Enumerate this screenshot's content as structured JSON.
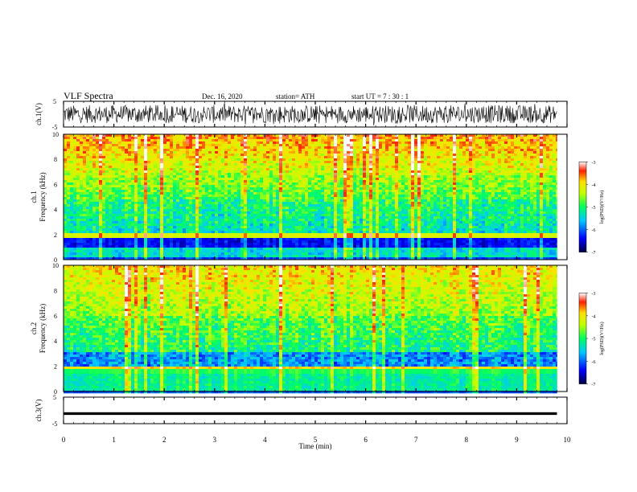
{
  "header": {
    "title": "VLF Spectra",
    "date": "Dec. 16, 2020",
    "station": "station= ATH",
    "start": "start  UT =   7 : 30 : 1"
  },
  "chart_data": [
    {
      "type": "line",
      "panel": "ch1-waveform",
      "ylabel": "ch.1(V)",
      "ylim": [
        -5,
        5
      ],
      "yticks": [
        "5",
        "-5"
      ],
      "x_range_min": [
        0,
        9.8
      ],
      "note_values": "noisy signal, approx -4 to 4 V"
    },
    {
      "type": "heatmap",
      "panel": "ch1-spectrogram",
      "ylabel_channel": "ch.1",
      "ylabel": "Frequency  (kHz)",
      "ylim": [
        0,
        10
      ],
      "yticks": [
        "0",
        "2",
        "4",
        "6",
        "8",
        "10"
      ],
      "x_range_min": [
        0,
        9.8
      ],
      "colorbar": {
        "label": "log(PSD)(V²/Hz)",
        "ticks": [
          "-3",
          "-4",
          "-5",
          "-6",
          "-7"
        ],
        "range": [
          -7,
          -3
        ]
      }
    },
    {
      "type": "heatmap",
      "panel": "ch2-spectrogram",
      "ylabel_channel": "ch.2",
      "ylabel": "Frequency  (kHz)",
      "ylim": [
        0,
        10
      ],
      "yticks": [
        "0",
        "2",
        "4",
        "6",
        "8",
        "10"
      ],
      "x_range_min": [
        0,
        9.8
      ],
      "colorbar": {
        "label": "log(PSD)(V²/Hz)",
        "ticks": [
          "-3",
          "-4",
          "-5",
          "-6",
          "-7"
        ],
        "range": [
          -7,
          -3
        ]
      }
    },
    {
      "type": "line",
      "panel": "ch3-waveform",
      "ylabel": "ch.3(V)",
      "ylim": [
        -5,
        5
      ],
      "yticks": [
        "5",
        "-5"
      ],
      "x_range_min": [
        0,
        9.8
      ],
      "note_values": "flat signal near -1 V"
    }
  ],
  "xaxis": {
    "label": "Time  (min)",
    "ticks": [
      "0",
      "1",
      "2",
      "3",
      "4",
      "5",
      "6",
      "7",
      "8",
      "9",
      "10"
    ],
    "range": [
      0,
      10
    ]
  },
  "colors": {
    "colormap": [
      "#000060",
      "#0000ff",
      "#00c0ff",
      "#00ff80",
      "#80ff00",
      "#ffff00",
      "#ff8000",
      "#ff0000",
      "#ffffff"
    ]
  }
}
